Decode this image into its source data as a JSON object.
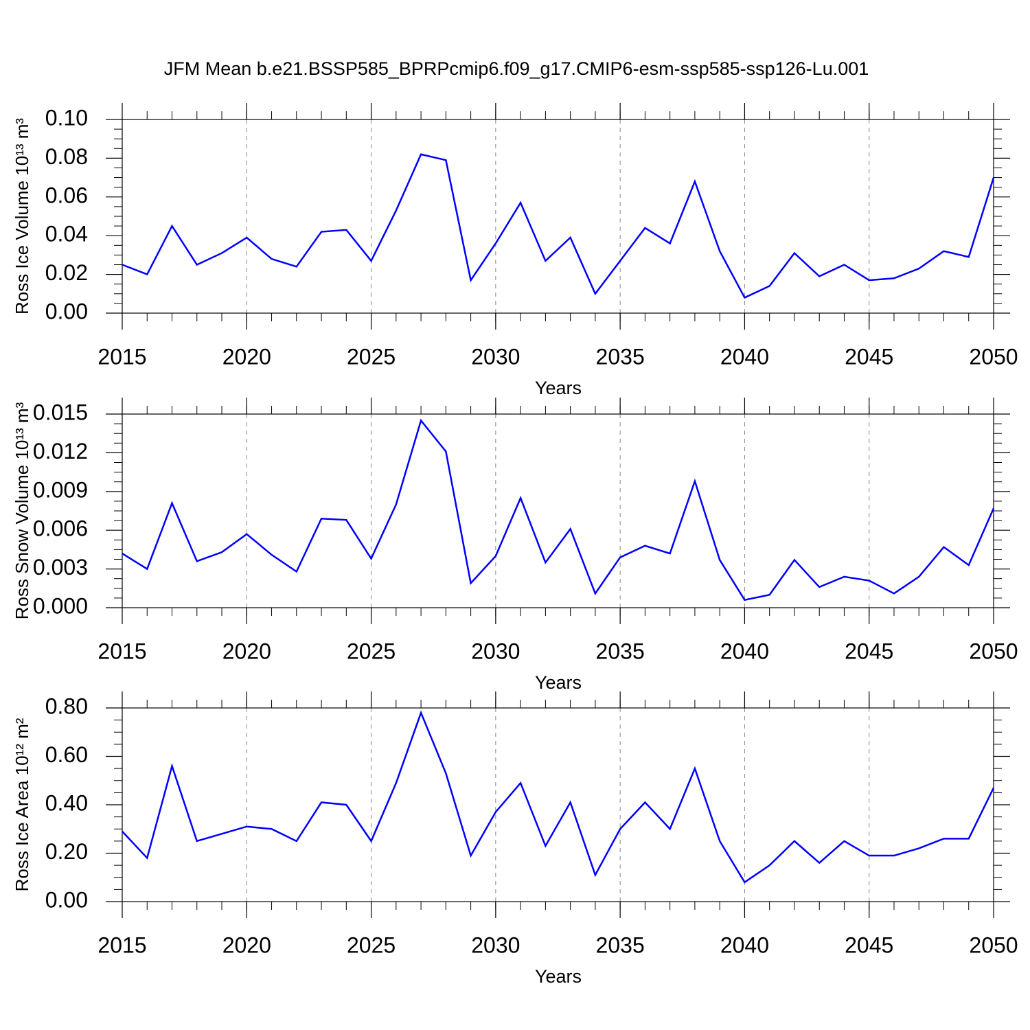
{
  "chart_data": [
    {
      "type": "line",
      "title": "JFM Mean b.e21.BSSP585_BPRPcmip6.f09_g17.CMIP6-esm-ssp585-ssp126-Lu.001",
      "ylabel": "Ross Ice Volume 10¹³ m³",
      "xlabel": "Years",
      "x": [
        2015,
        2016,
        2017,
        2018,
        2019,
        2020,
        2021,
        2022,
        2023,
        2024,
        2025,
        2026,
        2027,
        2028,
        2029,
        2030,
        2031,
        2032,
        2033,
        2034,
        2035,
        2036,
        2037,
        2038,
        2039,
        2040,
        2041,
        2042,
        2043,
        2044,
        2045,
        2046,
        2047,
        2048,
        2049,
        2050
      ],
      "series": [
        {
          "color": "#0000ff",
          "values": [
            0.025,
            0.02,
            0.045,
            0.025,
            0.031,
            0.039,
            0.028,
            0.024,
            0.042,
            0.043,
            0.027,
            0.053,
            0.082,
            0.079,
            0.017,
            0.036,
            0.057,
            0.027,
            0.039,
            0.01,
            0.027,
            0.044,
            0.036,
            0.068,
            0.032,
            0.008,
            0.014,
            0.031,
            0.019,
            0.025,
            0.017,
            0.018,
            0.023,
            0.032,
            0.029,
            0.07
          ]
        }
      ],
      "xlim": [
        2015,
        2050
      ],
      "xticks": [
        2015,
        2020,
        2025,
        2030,
        2035,
        2040,
        2045,
        2050
      ],
      "ylim": [
        0,
        0.1
      ],
      "yticks": [
        {
          "value": 0,
          "label": "0.00"
        },
        {
          "value": 0.02,
          "label": "0.02"
        },
        {
          "value": 0.04,
          "label": "0.04"
        },
        {
          "value": 0.06,
          "label": "0.06"
        },
        {
          "value": 0.08,
          "label": "0.08"
        },
        {
          "value": 0.1,
          "label": "0.10"
        }
      ],
      "xgrid": true
    },
    {
      "type": "line",
      "ylabel": "Ross Snow Volume 10¹³ m³",
      "xlabel": "Years",
      "x": [
        2015,
        2016,
        2017,
        2018,
        2019,
        2020,
        2021,
        2022,
        2023,
        2024,
        2025,
        2026,
        2027,
        2028,
        2029,
        2030,
        2031,
        2032,
        2033,
        2034,
        2035,
        2036,
        2037,
        2038,
        2039,
        2040,
        2041,
        2042,
        2043,
        2044,
        2045,
        2046,
        2047,
        2048,
        2049,
        2050
      ],
      "series": [
        {
          "color": "#0000ff",
          "values": [
            0.0042,
            0.003,
            0.0081,
            0.0036,
            0.0043,
            0.0057,
            0.0041,
            0.0028,
            0.0069,
            0.0068,
            0.0038,
            0.008,
            0.0145,
            0.0121,
            0.0019,
            0.004,
            0.0085,
            0.0035,
            0.0061,
            0.0011,
            0.0039,
            0.0048,
            0.0042,
            0.0098,
            0.0037,
            0.0006,
            0.001,
            0.0037,
            0.0016,
            0.0024,
            0.0021,
            0.0011,
            0.0024,
            0.0047,
            0.0033,
            0.0077
          ]
        }
      ],
      "xlim": [
        2015,
        2050
      ],
      "xticks": [
        2015,
        2020,
        2025,
        2030,
        2035,
        2040,
        2045,
        2050
      ],
      "ylim": [
        0,
        0.015
      ],
      "yticks": [
        {
          "value": 0,
          "label": "0.000"
        },
        {
          "value": 0.003,
          "label": "0.003"
        },
        {
          "value": 0.006,
          "label": "0.006"
        },
        {
          "value": 0.009,
          "label": "0.009"
        },
        {
          "value": 0.012,
          "label": "0.012"
        },
        {
          "value": 0.015,
          "label": "0.015"
        }
      ],
      "xgrid": true
    },
    {
      "type": "line",
      "ylabel": "Ross Ice Area 10¹² m²",
      "xlabel": "Years",
      "x": [
        2015,
        2016,
        2017,
        2018,
        2019,
        2020,
        2021,
        2022,
        2023,
        2024,
        2025,
        2026,
        2027,
        2028,
        2029,
        2030,
        2031,
        2032,
        2033,
        2034,
        2035,
        2036,
        2037,
        2038,
        2039,
        2040,
        2041,
        2042,
        2043,
        2044,
        2045,
        2046,
        2047,
        2048,
        2049,
        2050
      ],
      "series": [
        {
          "color": "#0000ff",
          "values": [
            0.29,
            0.18,
            0.56,
            0.25,
            0.28,
            0.31,
            0.3,
            0.25,
            0.41,
            0.4,
            0.25,
            0.49,
            0.78,
            0.53,
            0.19,
            0.37,
            0.49,
            0.23,
            0.41,
            0.11,
            0.3,
            0.41,
            0.3,
            0.55,
            0.25,
            0.08,
            0.15,
            0.25,
            0.16,
            0.25,
            0.19,
            0.19,
            0.22,
            0.26,
            0.26,
            0.47
          ]
        }
      ],
      "xlim": [
        2015,
        2050
      ],
      "xticks": [
        2015,
        2020,
        2025,
        2030,
        2035,
        2040,
        2045,
        2050
      ],
      "ylim": [
        0,
        0.8
      ],
      "yticks": [
        {
          "value": 0,
          "label": "0.00"
        },
        {
          "value": 0.2,
          "label": "0.20"
        },
        {
          "value": 0.4,
          "label": "0.40"
        },
        {
          "value": 0.6,
          "label": "0.60"
        },
        {
          "value": 0.8,
          "label": "0.80"
        }
      ],
      "xgrid": true
    }
  ]
}
